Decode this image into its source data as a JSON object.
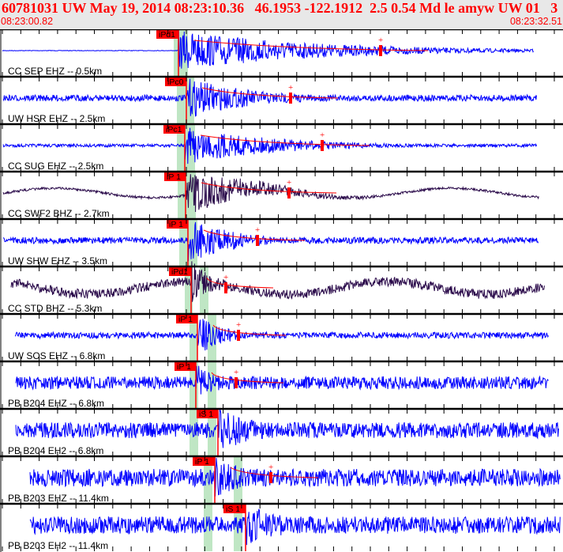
{
  "header": {
    "title": "60781031 UW May 19, 2014 08:23:10.36   46.1953 -122.1912  2.5 0.54 Md le amyw UW 01   3",
    "start_time": "08:23:00.82",
    "end_time": "08:23:32.51"
  },
  "colors": {
    "short_period": "#0000ff",
    "broadband": "#2a0a4a",
    "pick": "#ff0000",
    "window": "#bfe6c4"
  },
  "chart_data": {
    "type": "line",
    "title": "",
    "traces": [
      {
        "label": "CC SEP EHZ -- 0.5km",
        "pick": "iPd1",
        "kind": "sp"
      },
      {
        "label": "UW HSR EHZ -- 2.5km",
        "pick": "iPc0",
        "kind": "sp"
      },
      {
        "label": "CC SUG EHZ -- 2.5km",
        "pick": "iPc1",
        "kind": "sp"
      },
      {
        "label": "CC SWF2 BHZ -- 2.7km",
        "pick": "iP 1",
        "kind": "bb"
      },
      {
        "label": "UW SHW EHZ -- 3.5km",
        "pick": "iP 1",
        "kind": "sp"
      },
      {
        "label": "CC STD BHZ -- 5.3km",
        "pick": "iPd1",
        "kind": "bb"
      },
      {
        "label": "UW SOS EHZ -- 6.8km",
        "pick": "iP 1",
        "kind": "sp"
      },
      {
        "label": "PB B204 EHZ -- 6.8km",
        "pick": "iP 1",
        "kind": "sp"
      },
      {
        "label": "PB B204 EH2 -- 6.8km",
        "pick": "iS 1",
        "kind": "sp"
      },
      {
        "label": "PB B203 EHZ -- 11.4km",
        "pick": "iP 1",
        "kind": "sp"
      },
      {
        "label": "PB B203 EH2 -- 11.4km",
        "pick": "iS 1",
        "kind": "sp"
      }
    ]
  }
}
